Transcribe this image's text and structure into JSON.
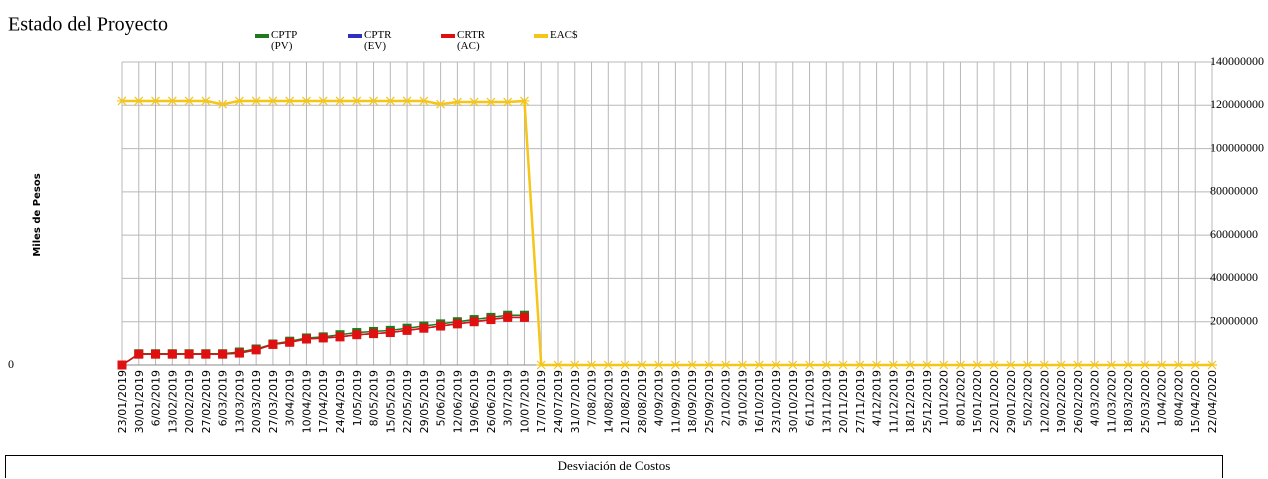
{
  "chart_data": {
    "type": "line",
    "title": "Estado del Proyecto",
    "y_label": "Miles de Pesos",
    "categories": [
      "23/01/2019",
      "30/01/2019",
      "6/02/2019",
      "13/02/2019",
      "20/02/2019",
      "27/02/2019",
      "6/03/2019",
      "13/03/2019",
      "20/03/2019",
      "27/03/2019",
      "3/04/2019",
      "10/04/2019",
      "17/04/2019",
      "24/04/2019",
      "1/05/2019",
      "8/05/2019",
      "15/05/2019",
      "22/05/2019",
      "29/05/2019",
      "5/06/2019",
      "12/06/2019",
      "19/06/2019",
      "26/06/2019",
      "3/07/2019",
      "10/07/2019",
      "17/07/2019",
      "24/07/2019",
      "31/07/2019",
      "7/08/2019",
      "14/08/2019",
      "21/08/2019",
      "28/08/2019",
      "4/09/2019",
      "11/09/2019",
      "18/09/2019",
      "25/09/2019",
      "2/10/2019",
      "9/10/2019",
      "16/10/2019",
      "23/10/2019",
      "30/10/2019",
      "6/11/2019",
      "13/11/2019",
      "20/11/2019",
      "27/11/2019",
      "4/12/2019",
      "11/12/2019",
      "18/12/2019",
      "25/12/2019",
      "1/01/2020",
      "8/01/2020",
      "15/01/2020",
      "22/01/2020",
      "29/01/2020",
      "5/02/2020",
      "12/02/2020",
      "19/02/2020",
      "26/02/2020",
      "4/03/2020",
      "11/03/2020",
      "18/03/2020",
      "25/03/2020",
      "1/04/2020",
      "8/04/2020",
      "15/04/2020",
      "22/04/2020"
    ],
    "series": [
      {
        "name": "CPTP (PV)",
        "color": "#1e7a1e",
        "marker": "square",
        "values": [
          0,
          5200000,
          5200000,
          5200000,
          5200000,
          5200000,
          5200000,
          6000000,
          7400000,
          9700000,
          11000000,
          12500000,
          13000000,
          14000000,
          15000000,
          15500000,
          16000000,
          17000000,
          18000000,
          19000000,
          20000000,
          21000000,
          22000000,
          23000000,
          23000000,
          null,
          null,
          null,
          null,
          null,
          null,
          null,
          null,
          null,
          null,
          null,
          null,
          null,
          null,
          null,
          null,
          null,
          null,
          null,
          null,
          null,
          null,
          null,
          null,
          null,
          null,
          null,
          null,
          null,
          null,
          null,
          null,
          null,
          null,
          null,
          null,
          null,
          null,
          null,
          null,
          null
        ]
      },
      {
        "name": "CPTR (EV)",
        "color": "#3030c0",
        "marker": "diamond",
        "values": [
          0,
          5000000,
          5000000,
          5000000,
          5000000,
          5000000,
          5000000,
          5500000,
          7000000,
          9500000,
          10500000,
          12000000,
          12500000,
          13000000,
          14000000,
          14500000,
          15000000,
          16000000,
          17000000,
          18000000,
          19000000,
          20000000,
          21000000,
          22000000,
          22000000,
          null,
          null,
          null,
          null,
          null,
          null,
          null,
          null,
          null,
          null,
          null,
          null,
          null,
          null,
          null,
          null,
          null,
          null,
          null,
          null,
          null,
          null,
          null,
          null,
          null,
          null,
          null,
          null,
          null,
          null,
          null,
          null,
          null,
          null,
          null,
          null,
          null,
          null,
          null,
          null,
          null
        ]
      },
      {
        "name": "CRTR (AC)",
        "color": "#e01010",
        "marker": "square",
        "values": [
          0,
          5000000,
          5000000,
          5000000,
          5000000,
          5000000,
          5000000,
          5500000,
          7000000,
          9500000,
          10500000,
          12000000,
          12500000,
          13000000,
          14000000,
          14500000,
          15000000,
          16000000,
          17000000,
          18000000,
          19000000,
          20000000,
          21000000,
          22000000,
          22000000,
          null,
          null,
          null,
          null,
          null,
          null,
          null,
          null,
          null,
          null,
          null,
          null,
          null,
          null,
          null,
          null,
          null,
          null,
          null,
          null,
          null,
          null,
          null,
          null,
          null,
          null,
          null,
          null,
          null,
          null,
          null,
          null,
          null,
          null,
          null,
          null,
          null,
          null,
          null,
          null,
          null
        ]
      },
      {
        "name": "EAC$",
        "color": "#f5c518",
        "marker": "cross",
        "values": [
          122000000,
          122000000,
          122000000,
          122000000,
          122000000,
          122000000,
          120500000,
          122000000,
          122000000,
          122000000,
          122000000,
          122000000,
          122000000,
          122000000,
          122000000,
          122000000,
          122000000,
          122000000,
          122000000,
          120500000,
          121500000,
          121500000,
          121500000,
          121500000,
          122000000,
          0,
          0,
          0,
          0,
          0,
          0,
          0,
          0,
          0,
          0,
          0,
          0,
          0,
          0,
          0,
          0,
          0,
          0,
          0,
          0,
          0,
          0,
          0,
          0,
          0,
          0,
          0,
          0,
          0,
          0,
          0,
          0,
          0,
          0,
          0,
          0,
          0,
          0,
          0,
          0,
          0
        ]
      }
    ],
    "ylim": [
      0,
      140000000
    ],
    "yticks": [
      0,
      20000000,
      40000000,
      60000000,
      80000000,
      100000000,
      120000000,
      140000000
    ],
    "grid": true
  },
  "footer": {
    "title": "Desviación de Costos"
  }
}
